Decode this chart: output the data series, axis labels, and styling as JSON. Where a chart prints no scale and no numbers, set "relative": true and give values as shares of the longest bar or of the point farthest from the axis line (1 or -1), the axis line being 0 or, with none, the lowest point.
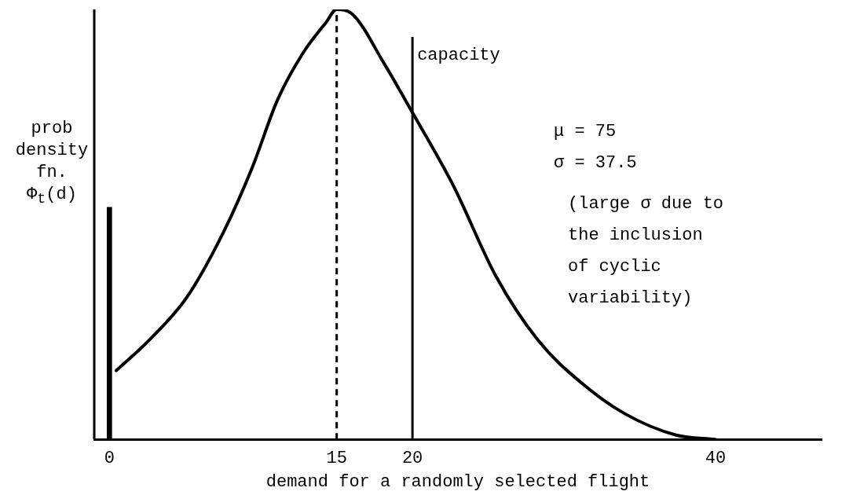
{
  "chart_data": {
    "type": "line",
    "xlabel": "demand for a randomly selected flight",
    "ylabel": "prob density fn. Φ$_{t}$(d)",
    "annotations": [
      "μ = 75",
      "σ = 37.5",
      "(large σ due to the inclusion of cyclic variability)"
    ],
    "relative": true,
    "xlim": [
      -1,
      47
    ],
    "xticks": [
      0,
      15,
      20,
      40
    ],
    "grid": false,
    "legend": false,
    "marker": "none",
    "ref_lines": [
      {
        "axis": "x",
        "value": 15,
        "line_style": "dashed"
      },
      {
        "axis": "x",
        "value": 20,
        "label": "capacity",
        "line_style": "solid"
      }
    ],
    "series": [
      {
        "color": "#000000",
        "x": [
          0.45,
          2.6,
          5.1,
          7.5,
          9.4,
          11.1,
          12.8,
          14.3,
          15,
          16,
          18.2,
          20,
          22.7,
          25.5,
          28.3,
          31.2,
          34,
          37.4,
          40
        ],
        "values": [
          0.16,
          0.23,
          0.33,
          0.48,
          0.63,
          0.79,
          0.9,
          0.97,
          1,
          0.99,
          0.87,
          0.76,
          0.59,
          0.38,
          0.23,
          0.13,
          0.06,
          0.01,
          0
        ]
      },
      {
        "type": "bar",
        "color": "#000000",
        "x": [
          0
        ],
        "values": [
          0.54
        ]
      }
    ]
  }
}
